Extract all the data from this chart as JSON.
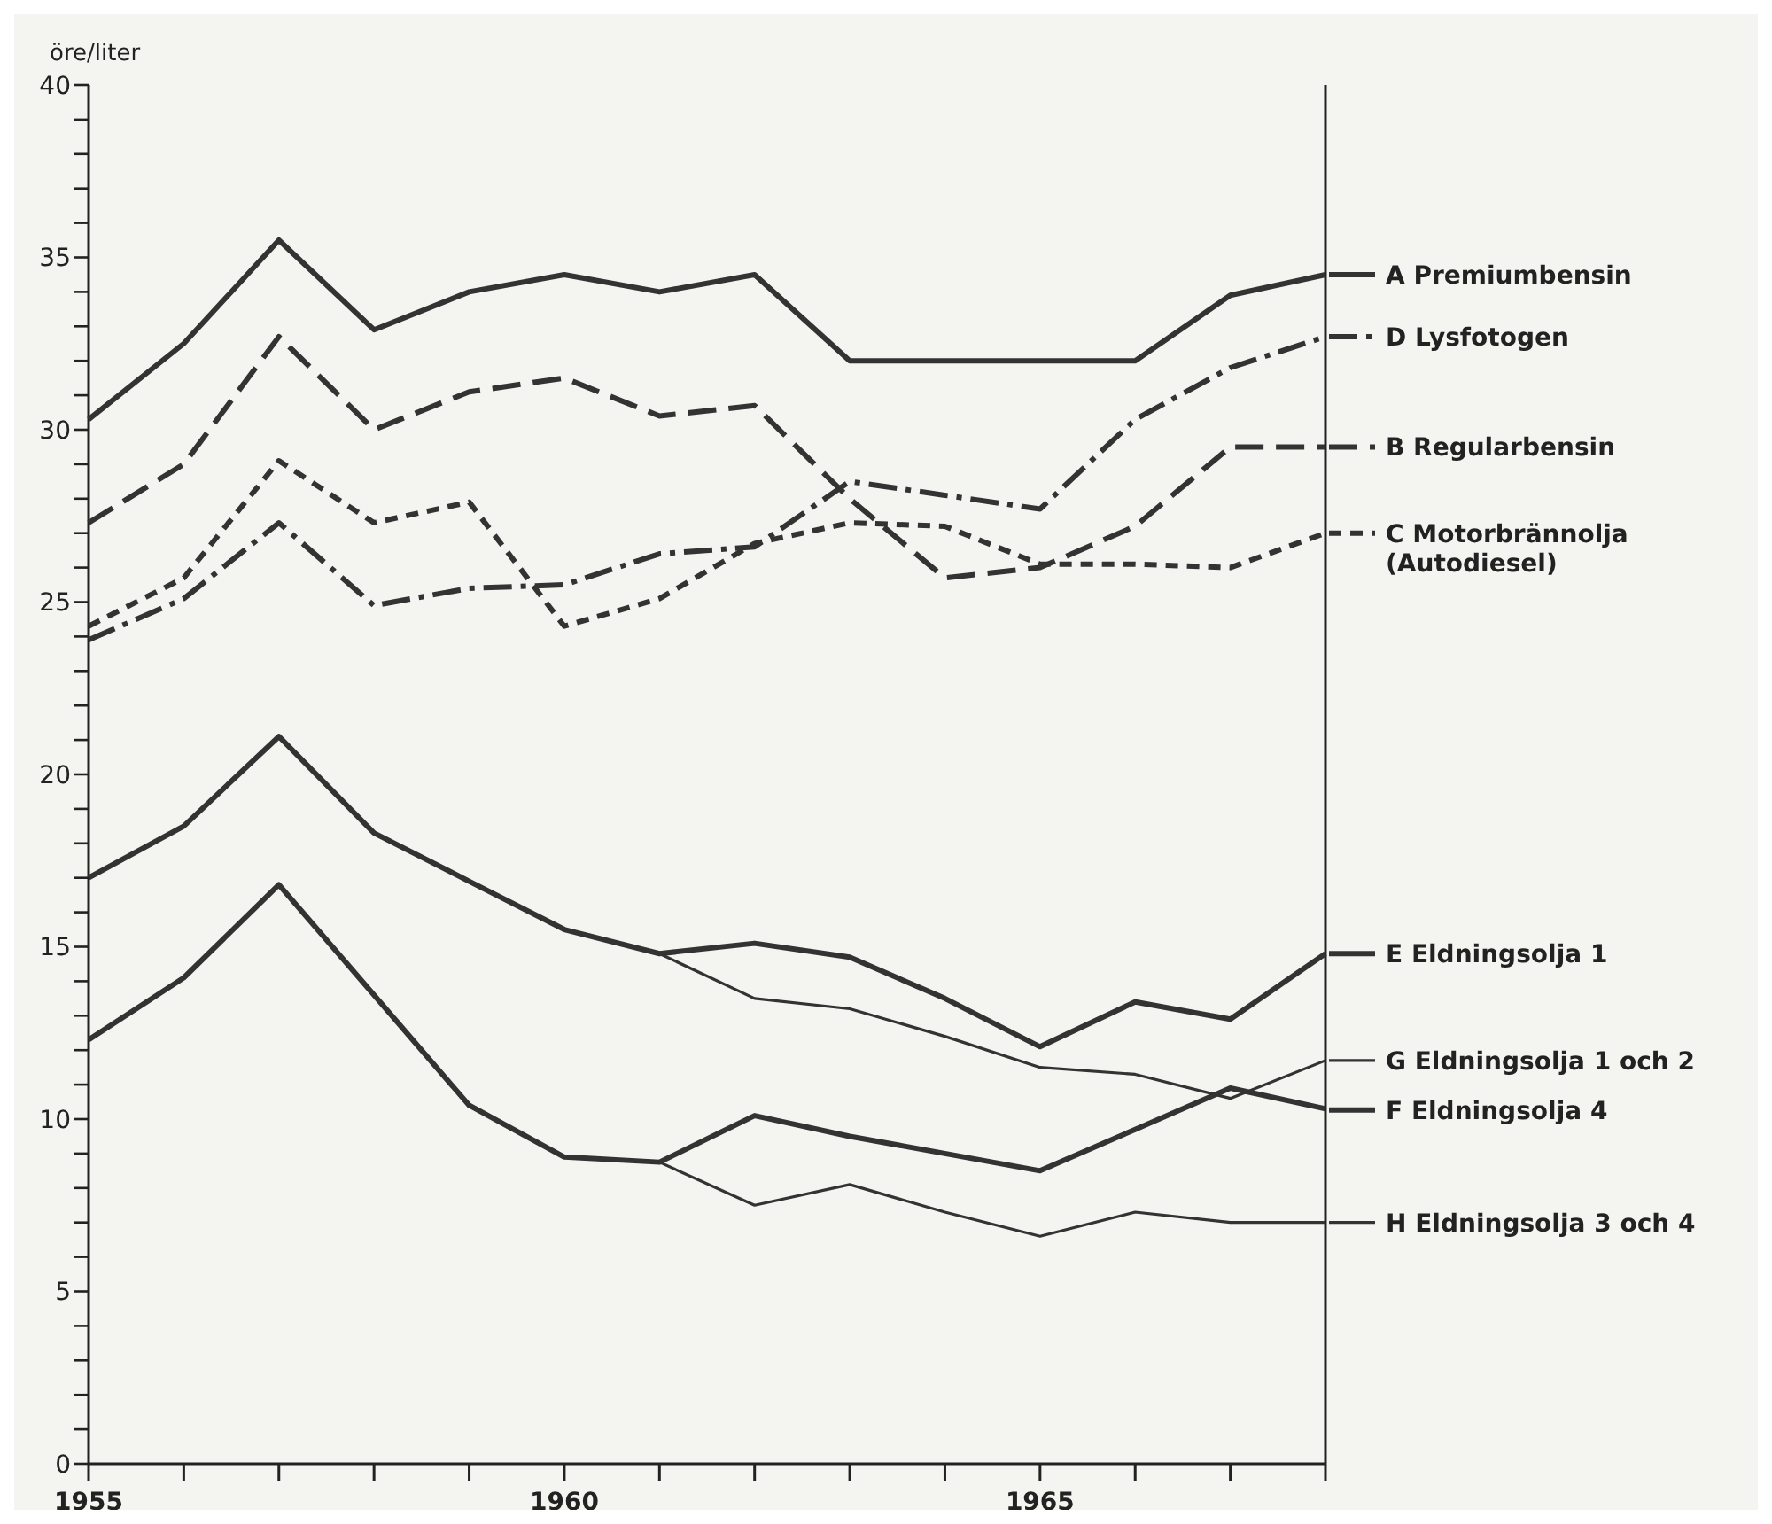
{
  "chart_data": {
    "type": "line",
    "ylabel": "öre/liter",
    "legend": "right",
    "grid": false,
    "x": [
      1955,
      1956,
      1957,
      1958,
      1959,
      1960,
      1961,
      1962,
      1963,
      1964,
      1965,
      1966,
      1967,
      1968
    ],
    "xlim": [
      1955,
      1968
    ],
    "xticks": [
      1955,
      {
        "value": 1956,
        "label": null
      },
      {
        "value": 1957,
        "label": null
      },
      {
        "value": 1958,
        "label": null
      },
      {
        "value": 1959,
        "label": null
      },
      1960,
      {
        "value": 1961,
        "label": null
      },
      {
        "value": 1962,
        "label": null
      },
      {
        "value": 1963,
        "label": null
      },
      {
        "value": 1964,
        "label": null
      },
      1965,
      {
        "value": 1966,
        "label": null
      },
      {
        "value": 1967,
        "label": null
      },
      {
        "value": 1968,
        "label": null
      }
    ],
    "ylim": [
      0,
      40
    ],
    "yticks": [
      0,
      {
        "value": 1,
        "label": null
      },
      {
        "value": 2,
        "label": null
      },
      {
        "value": 3,
        "label": null
      },
      {
        "value": 4,
        "label": null
      },
      5,
      {
        "value": 6,
        "label": null
      },
      {
        "value": 7,
        "label": null
      },
      {
        "value": 8,
        "label": null
      },
      {
        "value": 9,
        "label": null
      },
      10,
      {
        "value": 11,
        "label": null
      },
      {
        "value": 12,
        "label": null
      },
      {
        "value": 13,
        "label": null
      },
      {
        "value": 14,
        "label": null
      },
      15,
      {
        "value": 16,
        "label": null
      },
      {
        "value": 17,
        "label": null
      },
      {
        "value": 18,
        "label": null
      },
      {
        "value": 19,
        "label": null
      },
      20,
      {
        "value": 21,
        "label": null
      },
      {
        "value": 22,
        "label": null
      },
      {
        "value": 23,
        "label": null
      },
      {
        "value": 24,
        "label": null
      },
      25,
      {
        "value": 26,
        "label": null
      },
      {
        "value": 27,
        "label": null
      },
      {
        "value": 28,
        "label": null
      },
      {
        "value": 29,
        "label": null
      },
      30,
      {
        "value": 31,
        "label": null
      },
      {
        "value": 32,
        "label": null
      },
      {
        "value": 33,
        "label": null
      },
      {
        "value": 34,
        "label": null
      },
      35,
      {
        "value": 36,
        "label": null
      },
      {
        "value": 37,
        "label": null
      },
      {
        "value": 38,
        "label": null
      },
      {
        "value": 39,
        "label": null
      },
      40
    ],
    "series": [
      {
        "name": "A Premiumbensin",
        "color": "#333333",
        "line_style": "solid",
        "values": [
          30.3,
          32.5,
          35.5,
          32.9,
          34.0,
          34.5,
          34.0,
          34.5,
          32.0,
          32.0,
          32.0,
          32.0,
          33.9,
          34.5
        ]
      },
      {
        "name": "D Lysfotogen",
        "color": "#333333",
        "line_style": "dashdot",
        "values": [
          23.9,
          25.1,
          27.3,
          24.9,
          25.4,
          25.5,
          26.4,
          26.6,
          28.5,
          28.1,
          27.7,
          30.3,
          31.8,
          32.7
        ]
      },
      {
        "name": "B Regularbensin",
        "color": "#333333",
        "line_style": "dashed",
        "values": [
          27.3,
          29.0,
          32.7,
          30.0,
          31.1,
          31.5,
          30.4,
          30.7,
          28.0,
          25.7,
          26.0,
          27.2,
          29.5,
          29.5
        ]
      },
      {
        "name": "C Motorbrännolja (Autodiesel)",
        "color": "#333333",
        "line_style": "dotted",
        "values": [
          24.3,
          25.7,
          29.1,
          27.3,
          27.9,
          24.3,
          25.1,
          26.7,
          27.3,
          27.2,
          26.1,
          26.1,
          26.0,
          27.0
        ]
      },
      {
        "name": "E Eldningsolja 1",
        "color": "#333333",
        "line_style": "solid",
        "values": [
          17.0,
          18.5,
          21.1,
          18.3,
          16.9,
          15.5,
          14.8,
          15.1,
          14.7,
          13.5,
          12.1,
          13.4,
          12.9,
          14.8
        ]
      },
      {
        "name": "G Eldningsolja 1 och 2",
        "color": "#333333",
        "line_style": "solid",
        "values": [
          17.0,
          18.5,
          21.1,
          18.3,
          16.9,
          15.5,
          14.8,
          13.5,
          13.2,
          12.4,
          11.5,
          11.3,
          10.6,
          11.7
        ]
      },
      {
        "name": "F Eldningsolja 4",
        "color": "#333333",
        "line_style": "solid",
        "values": [
          12.3,
          14.1,
          16.8,
          13.6,
          10.4,
          8.9,
          8.75,
          10.1,
          9.5,
          9.0,
          8.5,
          9.7,
          10.9,
          10.3
        ]
      },
      {
        "name": "H Eldningsolja 3 och 4",
        "color": "#333333",
        "line_style": "solid",
        "values": [
          12.3,
          14.1,
          16.8,
          13.6,
          10.4,
          8.9,
          8.75,
          7.5,
          8.1,
          7.3,
          6.6,
          7.3,
          7.0,
          7.0
        ]
      }
    ]
  }
}
